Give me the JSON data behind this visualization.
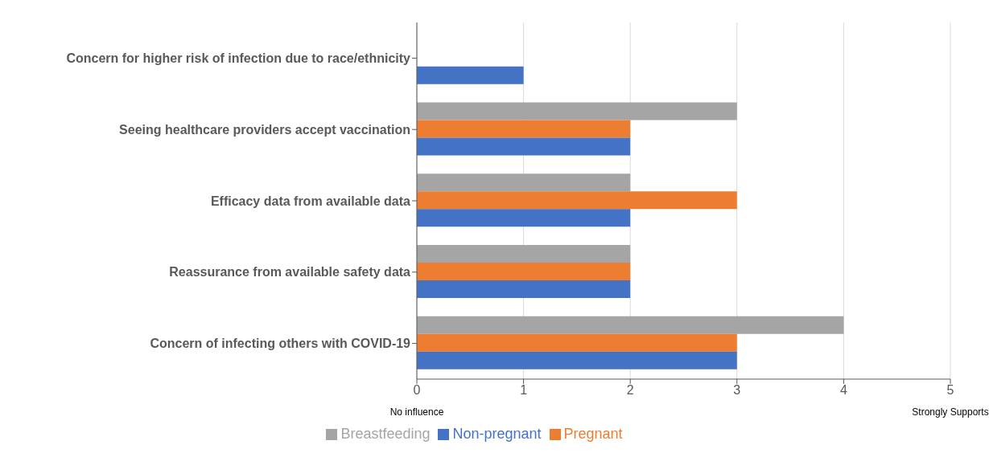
{
  "chart_data": {
    "type": "bar",
    "orientation": "horizontal",
    "categories": [
      "Concern for higher risk of infection due to race/ethnicity",
      "Seeing healthcare providers accept vaccination",
      "Efficacy data from available data",
      "Reassurance from available safety data",
      "Concern of infecting others with COVID-19"
    ],
    "series": [
      {
        "name": "Breastfeeding",
        "color": "#a5a5a5",
        "values": [
          0,
          3,
          2,
          2,
          4
        ]
      },
      {
        "name": "Pregnant",
        "color": "#ed7d31",
        "values": [
          0,
          2,
          3,
          2,
          3
        ]
      },
      {
        "name": "Non-pregnant",
        "color": "#4472c4",
        "values": [
          1,
          2,
          2,
          2,
          3
        ]
      }
    ],
    "xlim": [
      0,
      5
    ],
    "xticks": [
      0,
      1,
      2,
      3,
      4,
      5
    ],
    "grid": "x",
    "legend": "bottom",
    "annotations": [
      "No influence",
      "Strongly Supports"
    ]
  }
}
